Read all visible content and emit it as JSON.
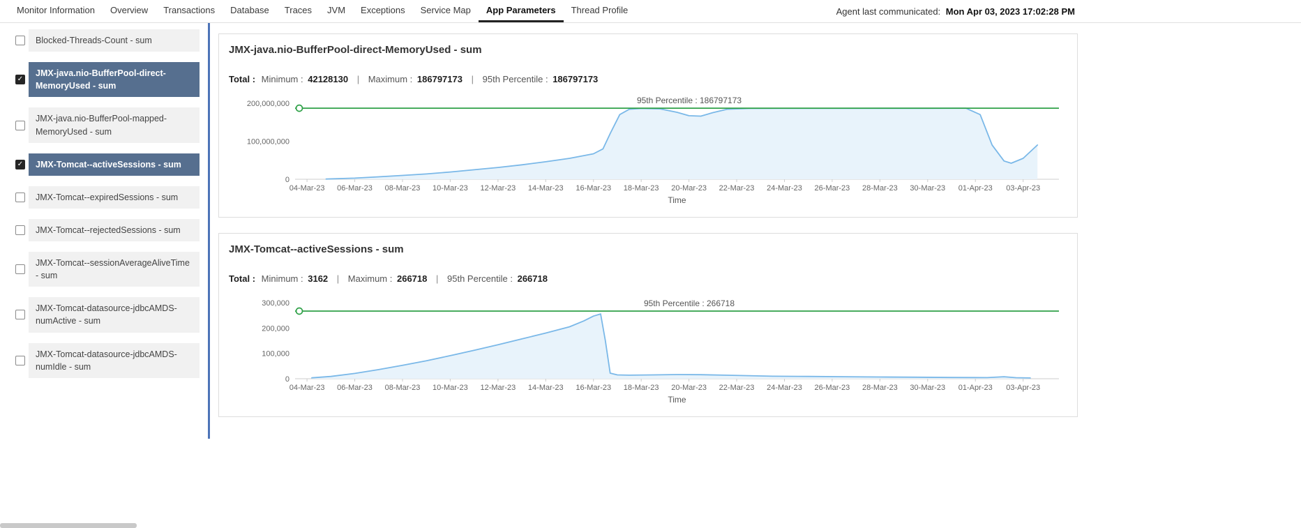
{
  "nav": {
    "tabs": [
      {
        "label": "Monitor Information",
        "active": false
      },
      {
        "label": "Overview",
        "active": false
      },
      {
        "label": "Transactions",
        "active": false
      },
      {
        "label": "Database",
        "active": false
      },
      {
        "label": "Traces",
        "active": false
      },
      {
        "label": "JVM",
        "active": false
      },
      {
        "label": "Exceptions",
        "active": false
      },
      {
        "label": "Service Map",
        "active": false
      },
      {
        "label": "App Parameters",
        "active": true
      },
      {
        "label": "Thread Profile",
        "active": false
      }
    ],
    "agent_label": "Agent last communicated:",
    "agent_time": "Mon Apr 03, 2023 17:02:28 PM"
  },
  "sidebar": {
    "items": [
      {
        "label": "Blocked-Threads-Count - sum",
        "checked": false
      },
      {
        "label": "JMX-java.nio-BufferPool-direct-MemoryUsed - sum",
        "checked": true
      },
      {
        "label": "JMX-java.nio-BufferPool-mapped-MemoryUsed - sum",
        "checked": false
      },
      {
        "label": "JMX-Tomcat--activeSessions - sum",
        "checked": true
      },
      {
        "label": "JMX-Tomcat--expiredSessions - sum",
        "checked": false
      },
      {
        "label": "JMX-Tomcat--rejectedSessions - sum",
        "checked": false
      },
      {
        "label": "JMX-Tomcat--sessionAverageAliveTime - sum",
        "checked": false
      },
      {
        "label": "JMX-Tomcat-datasource-jdbcAMDS-numActive - sum",
        "checked": false
      },
      {
        "label": "JMX-Tomcat-datasource-jdbcAMDS-numIdle - sum",
        "checked": false
      }
    ]
  },
  "colors": {
    "divider": "#4d74b8",
    "selected_item_bg": "#566f8f",
    "line": "#7ab8e8",
    "area_fill": "#e8f3fb",
    "percentile_green": "#2fa148"
  },
  "chart_data": [
    {
      "type": "area",
      "title": "JMX-java.nio-BufferPool-direct-MemoryUsed - sum",
      "stats": {
        "total_label": "Total :",
        "min_label": "Minimum :",
        "min": "42128130",
        "max_label": "Maximum :",
        "max": "186797173",
        "p95_label": "95th Percentile :",
        "p95": "186797173"
      },
      "xlabel": "Time",
      "grid": "off",
      "legend": "off",
      "x_domain": [
        -0.5,
        31.5
      ],
      "x_ticks": [
        {
          "day": 0,
          "label": "04-Mar-23"
        },
        {
          "day": 2,
          "label": "06-Mar-23"
        },
        {
          "day": 4,
          "label": "08-Mar-23"
        },
        {
          "day": 6,
          "label": "10-Mar-23"
        },
        {
          "day": 8,
          "label": "12-Mar-23"
        },
        {
          "day": 10,
          "label": "14-Mar-23"
        },
        {
          "day": 12,
          "label": "16-Mar-23"
        },
        {
          "day": 14,
          "label": "18-Mar-23"
        },
        {
          "day": 16,
          "label": "20-Mar-23"
        },
        {
          "day": 18,
          "label": "22-Mar-23"
        },
        {
          "day": 20,
          "label": "24-Mar-23"
        },
        {
          "day": 22,
          "label": "26-Mar-23"
        },
        {
          "day": 24,
          "label": "28-Mar-23"
        },
        {
          "day": 26,
          "label": "30-Mar-23"
        },
        {
          "day": 28,
          "label": "01-Apr-23"
        },
        {
          "day": 30,
          "label": "03-Apr-23"
        }
      ],
      "ylim": [
        0,
        220000000
      ],
      "y_ticks": [
        {
          "value": 0,
          "label": "0"
        },
        {
          "value": 100000000,
          "label": "100,000,000"
        },
        {
          "value": 200000000,
          "label": "200,000,000"
        }
      ],
      "percentile_line": {
        "value": 186797173,
        "label": "95th Percentile : 186797173"
      },
      "series": [
        {
          "name": "sum",
          "points": [
            [
              0.8,
              500000
            ],
            [
              2,
              3000000
            ],
            [
              3,
              6500000
            ],
            [
              4,
              10000000
            ],
            [
              5,
              14000000
            ],
            [
              6,
              19000000
            ],
            [
              7,
              25000000
            ],
            [
              8,
              31000000
            ],
            [
              9,
              38000000
            ],
            [
              10,
              46000000
            ],
            [
              11,
              55000000
            ],
            [
              12,
              67000000
            ],
            [
              12.4,
              80000000
            ],
            [
              12.7,
              120000000
            ],
            [
              13.1,
              170000000
            ],
            [
              13.5,
              184000000
            ],
            [
              14,
              186000000
            ],
            [
              14.8,
              185000000
            ],
            [
              15.5,
              176000000
            ],
            [
              16,
              167000000
            ],
            [
              16.5,
              166000000
            ],
            [
              17,
              175000000
            ],
            [
              17.6,
              184000000
            ],
            [
              18.5,
              186000000
            ],
            [
              20,
              186200000
            ],
            [
              22,
              186300000
            ],
            [
              24,
              186400000
            ],
            [
              26,
              186500000
            ],
            [
              27.6,
              186797173
            ],
            [
              28.2,
              170000000
            ],
            [
              28.7,
              90000000
            ],
            [
              29.2,
              48000000
            ],
            [
              29.5,
              42128130
            ],
            [
              30,
              55000000
            ],
            [
              30.6,
              90000000
            ]
          ]
        }
      ]
    },
    {
      "type": "area",
      "title": "JMX-Tomcat--activeSessions - sum",
      "stats": {
        "total_label": "Total :",
        "min_label": "Minimum :",
        "min": "3162",
        "max_label": "Maximum :",
        "max": "266718",
        "p95_label": "95th Percentile :",
        "p95": "266718"
      },
      "xlabel": "Time",
      "grid": "off",
      "legend": "off",
      "x_domain": [
        -0.5,
        31.5
      ],
      "x_ticks": [
        {
          "day": 0,
          "label": "04-Mar-23"
        },
        {
          "day": 2,
          "label": "06-Mar-23"
        },
        {
          "day": 4,
          "label": "08-Mar-23"
        },
        {
          "day": 6,
          "label": "10-Mar-23"
        },
        {
          "day": 8,
          "label": "12-Mar-23"
        },
        {
          "day": 10,
          "label": "14-Mar-23"
        },
        {
          "day": 12,
          "label": "16-Mar-23"
        },
        {
          "day": 14,
          "label": "18-Mar-23"
        },
        {
          "day": 16,
          "label": "20-Mar-23"
        },
        {
          "day": 18,
          "label": "22-Mar-23"
        },
        {
          "day": 20,
          "label": "24-Mar-23"
        },
        {
          "day": 22,
          "label": "26-Mar-23"
        },
        {
          "day": 24,
          "label": "28-Mar-23"
        },
        {
          "day": 26,
          "label": "30-Mar-23"
        },
        {
          "day": 28,
          "label": "01-Apr-23"
        },
        {
          "day": 30,
          "label": "03-Apr-23"
        }
      ],
      "ylim": [
        0,
        330000
      ],
      "y_ticks": [
        {
          "value": 0,
          "label": "0"
        },
        {
          "value": 100000,
          "label": "100,000"
        },
        {
          "value": 200000,
          "label": "200,000"
        },
        {
          "value": 300000,
          "label": "300,000"
        }
      ],
      "percentile_line": {
        "value": 266718,
        "label": "95th Percentile : 266718"
      },
      "series": [
        {
          "name": "sum",
          "points": [
            [
              0.2,
              3500
            ],
            [
              1,
              9000
            ],
            [
              2,
              21000
            ],
            [
              3,
              36000
            ],
            [
              4,
              53000
            ],
            [
              5,
              71000
            ],
            [
              6,
              91000
            ],
            [
              7,
              112000
            ],
            [
              8,
              134000
            ],
            [
              9,
              157000
            ],
            [
              10,
              180000
            ],
            [
              11,
              205000
            ],
            [
              11.6,
              228000
            ],
            [
              12,
              247000
            ],
            [
              12.3,
              255500
            ],
            [
              12.5,
              150000
            ],
            [
              12.7,
              22000
            ],
            [
              13,
              15000
            ],
            [
              13.5,
              14000
            ],
            [
              14.5,
              15000
            ],
            [
              15.5,
              16500
            ],
            [
              16.5,
              16000
            ],
            [
              17.5,
              14000
            ],
            [
              18.5,
              12000
            ],
            [
              19.5,
              10000
            ],
            [
              21,
              9000
            ],
            [
              22.5,
              8000
            ],
            [
              24,
              7000
            ],
            [
              25.5,
              6000
            ],
            [
              27,
              5000
            ],
            [
              28.5,
              4500
            ],
            [
              29.2,
              8000
            ],
            [
              29.7,
              4000
            ],
            [
              30.3,
              3162
            ]
          ]
        }
      ]
    }
  ]
}
